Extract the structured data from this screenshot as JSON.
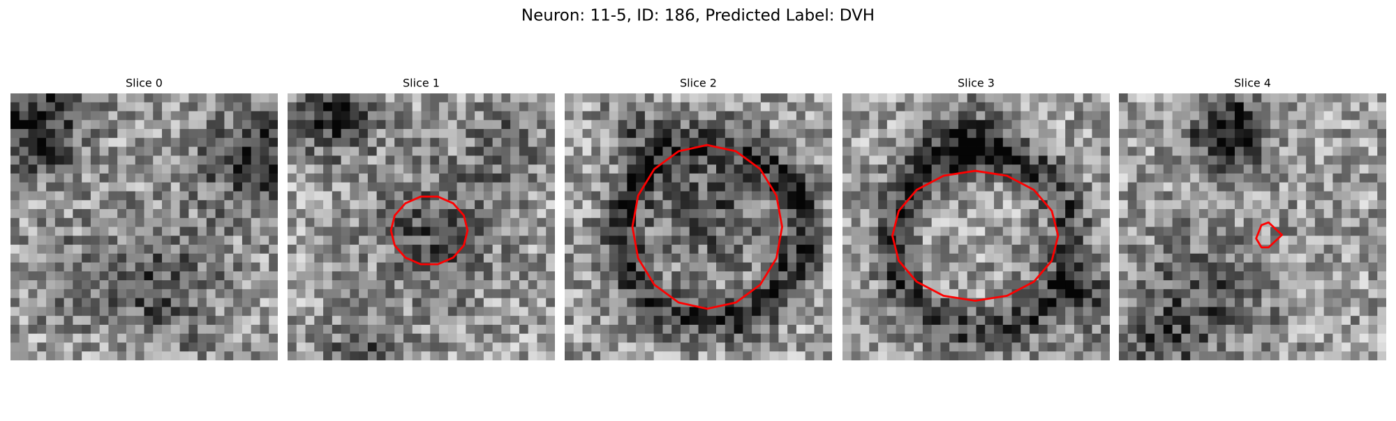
{
  "figure": {
    "title": "Neuron: 11-5, ID: 186, Predicted Label: DVH",
    "panels": [
      {
        "title": "Slice 0"
      },
      {
        "title": "Slice 1"
      },
      {
        "title": "Slice 2"
      },
      {
        "title": "Slice 3"
      },
      {
        "title": "Slice 4"
      }
    ]
  }
}
